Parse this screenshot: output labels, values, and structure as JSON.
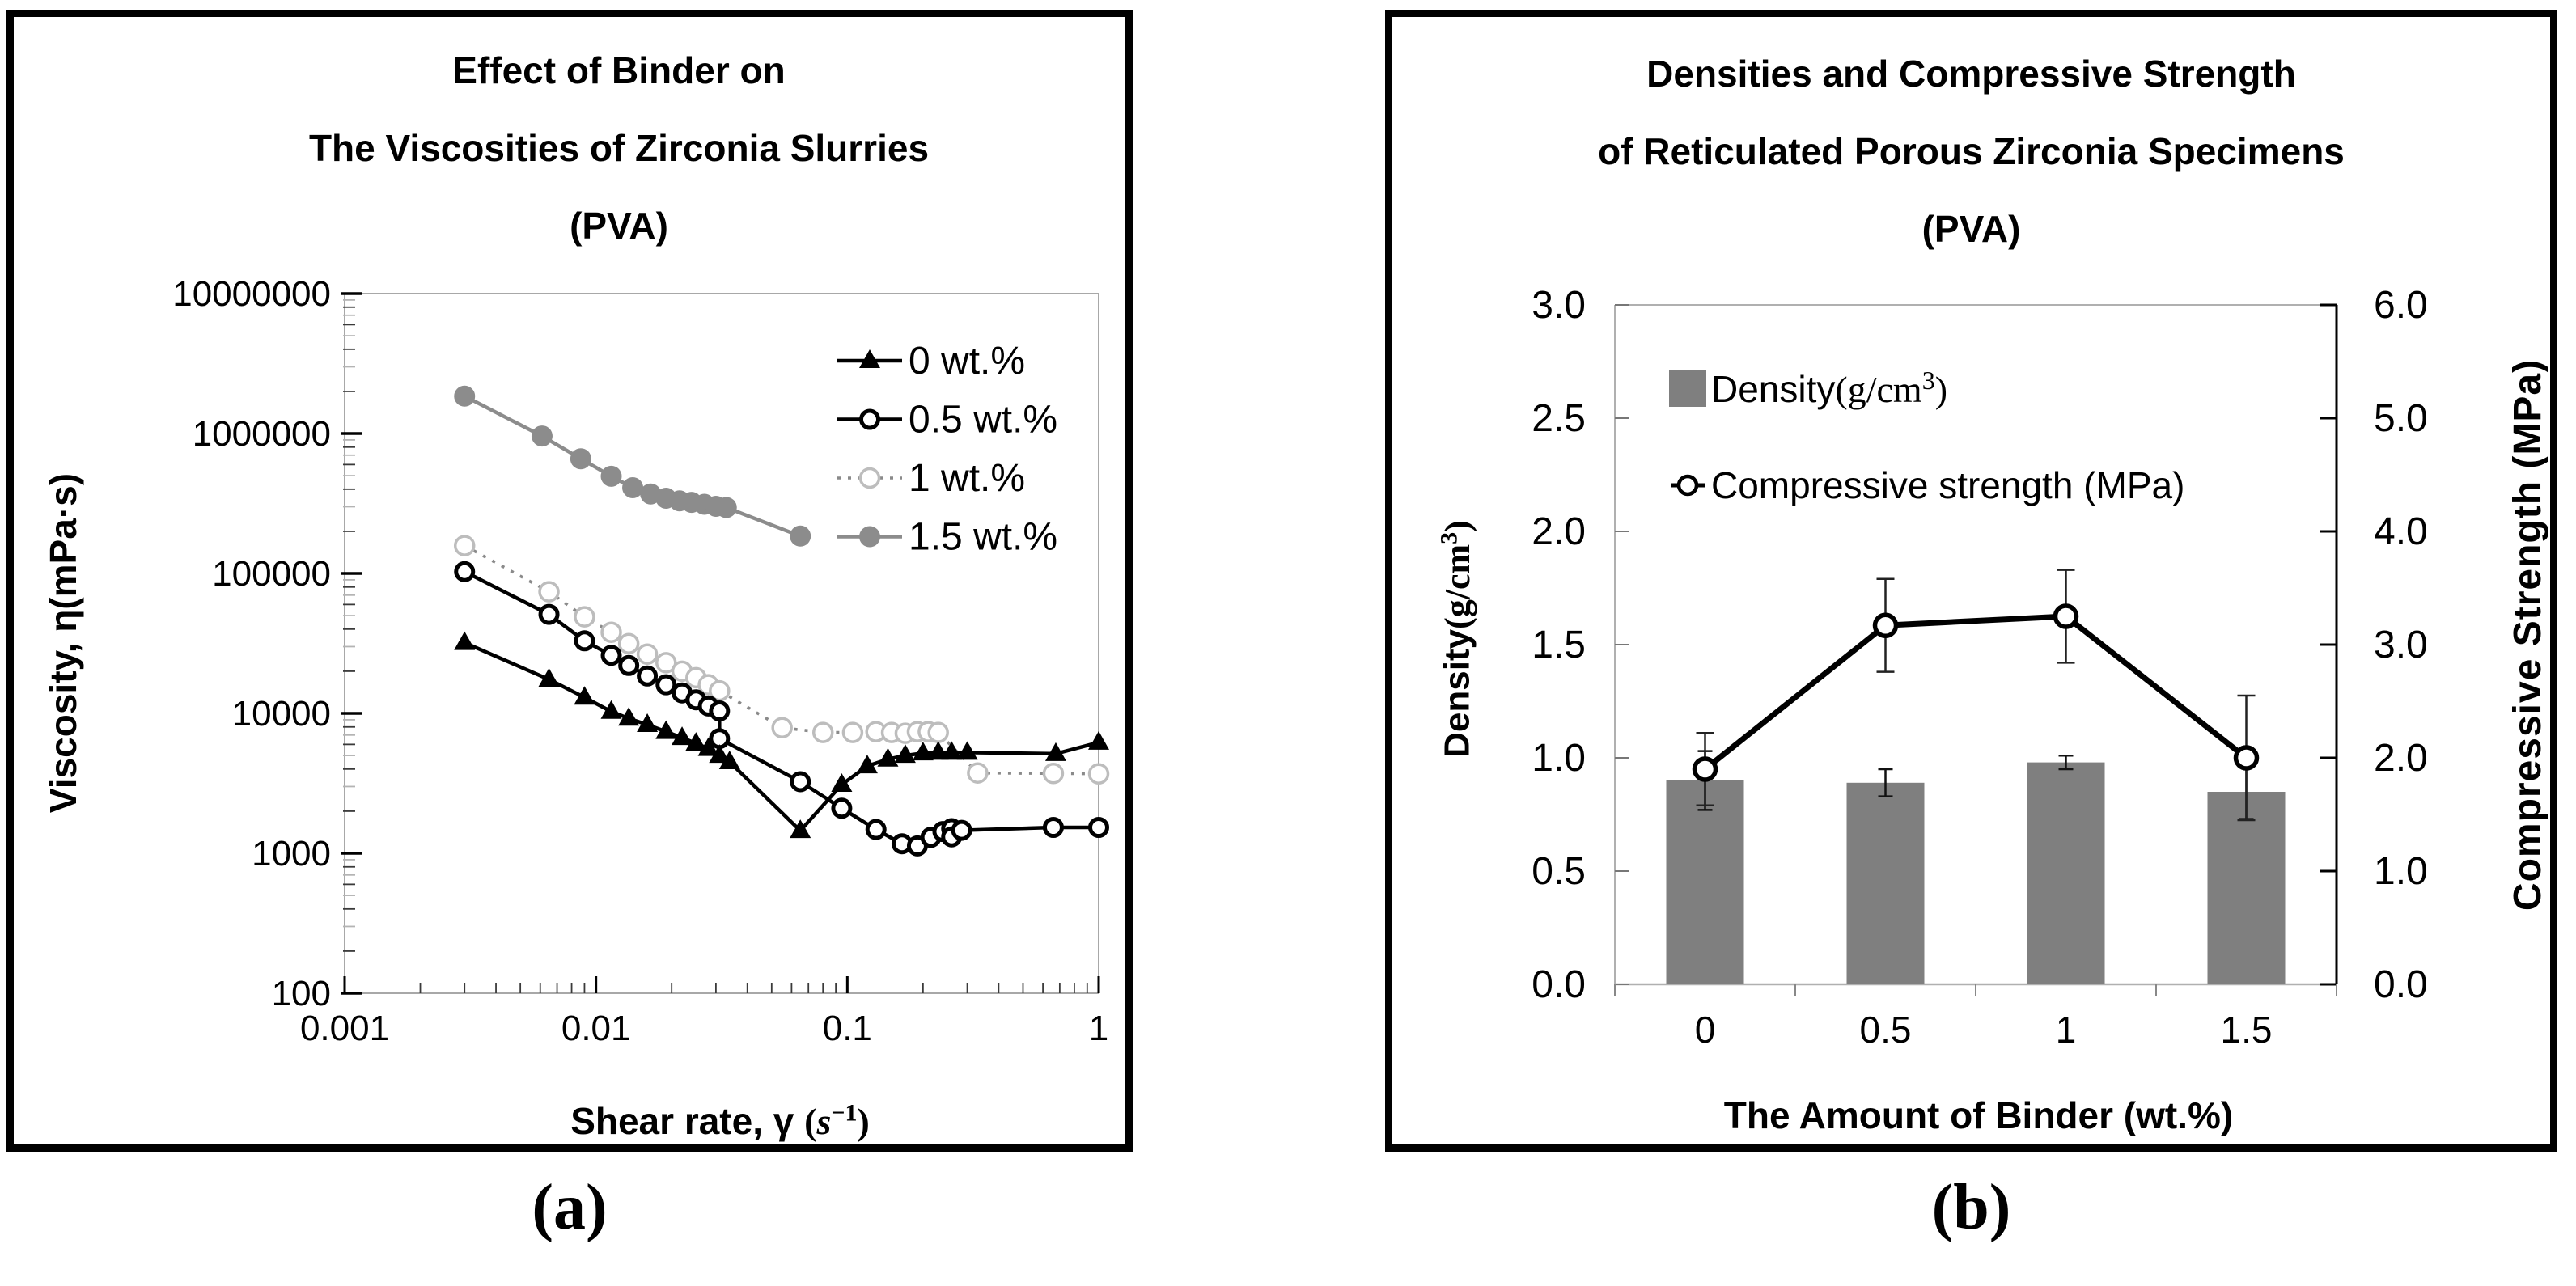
{
  "captions": {
    "a": "(a)",
    "b": "(b)"
  },
  "chart_data": [
    {
      "type": "line",
      "scale": "log-log",
      "title_lines": [
        "Effect of Binder on",
        "The Viscosities of Zirconia Slurries",
        "(PVA)"
      ],
      "ylabel": "Viscosity, η(mPa·s)",
      "xlabel_parts": {
        "main": "Shear rate, γ ",
        "open": "(",
        "s": "s",
        "sup": "−1",
        "close": ")"
      },
      "xlim": [
        0.001,
        1
      ],
      "ylim": [
        100,
        10000000
      ],
      "x_tick_labels": [
        "0.001",
        "0.01",
        "0.1",
        "1"
      ],
      "y_tick_labels": [
        "10000000",
        "1000000",
        "100000",
        "10000",
        "1000",
        "100"
      ],
      "grid": "off",
      "legend_position": "inside-top-right",
      "series": [
        {
          "name": "1.5 wt.%",
          "marker": "circle-filled",
          "line": "solid",
          "line_color": "#8c8c8c",
          "marker_color": "#8c8c8c",
          "points": [
            [
              0.003,
              1850000
            ],
            [
              0.0061,
              960000
            ],
            [
              0.0087,
              660000
            ],
            [
              0.0115,
              495000
            ],
            [
              0.014,
              410000
            ],
            [
              0.0165,
              370000
            ],
            [
              0.019,
              345000
            ],
            [
              0.0215,
              330000
            ],
            [
              0.024,
              322000
            ],
            [
              0.027,
              312000
            ],
            [
              0.03,
              302000
            ],
            [
              0.033,
              296000
            ],
            [
              0.065,
              185000
            ]
          ]
        },
        {
          "name": "1 wt.%",
          "marker": "circle-open-light",
          "line": "dotted",
          "line_color": "#8a8a8a",
          "marker_color": "#bdbdbd",
          "points": [
            [
              0.003,
              158000
            ],
            [
              0.0065,
              74000
            ],
            [
              0.009,
              49000
            ],
            [
              0.0115,
              38000
            ],
            [
              0.0135,
              31500
            ],
            [
              0.016,
              26500
            ],
            [
              0.019,
              23000
            ],
            [
              0.022,
              20000
            ],
            [
              0.025,
              18000
            ],
            [
              0.028,
              16000
            ],
            [
              0.031,
              14500
            ],
            [
              0.055,
              7900
            ],
            [
              0.08,
              7300
            ],
            [
              0.105,
              7300
            ],
            [
              0.13,
              7400
            ],
            [
              0.15,
              7300
            ],
            [
              0.17,
              7200
            ],
            [
              0.19,
              7400
            ],
            [
              0.21,
              7400
            ],
            [
              0.23,
              7300
            ],
            [
              0.33,
              3750
            ],
            [
              0.66,
              3720
            ],
            [
              1,
              3700
            ]
          ]
        },
        {
          "name": "0.5 wt.%",
          "marker": "circle-open",
          "line": "solid",
          "line_color": "#000000",
          "marker_color": "#000000",
          "points": [
            [
              0.003,
              103000
            ],
            [
              0.0065,
              51000
            ],
            [
              0.009,
              33000
            ],
            [
              0.0115,
              26000
            ],
            [
              0.0135,
              22000
            ],
            [
              0.016,
              18500
            ],
            [
              0.019,
              16000
            ],
            [
              0.022,
              14000
            ],
            [
              0.025,
              12500
            ],
            [
              0.028,
              11300
            ],
            [
              0.031,
              10400
            ],
            [
              0.031,
              6600
            ],
            [
              0.065,
              3250
            ],
            [
              0.095,
              2100
            ],
            [
              0.13,
              1480
            ],
            [
              0.165,
              1170
            ],
            [
              0.19,
              1130
            ],
            [
              0.215,
              1300
            ],
            [
              0.24,
              1430
            ],
            [
              0.26,
              1500
            ],
            [
              0.26,
              1310
            ],
            [
              0.285,
              1460
            ],
            [
              0.66,
              1530
            ],
            [
              1,
              1530
            ]
          ]
        },
        {
          "name": "0 wt.%",
          "marker": "triangle-filled",
          "line": "solid",
          "line_color": "#000000",
          "marker_color": "#000000",
          "points": [
            [
              0.003,
              32000
            ],
            [
              0.0065,
              17500
            ],
            [
              0.009,
              13000
            ],
            [
              0.0115,
              10300
            ],
            [
              0.0135,
              9200
            ],
            [
              0.016,
              8300
            ],
            [
              0.019,
              7400
            ],
            [
              0.022,
              6700
            ],
            [
              0.025,
              6100
            ],
            [
              0.028,
              5600
            ],
            [
              0.031,
              5000
            ],
            [
              0.034,
              4500
            ],
            [
              0.065,
              1450
            ],
            [
              0.095,
              3100
            ],
            [
              0.12,
              4200
            ],
            [
              0.145,
              4700
            ],
            [
              0.17,
              5000
            ],
            [
              0.2,
              5200
            ],
            [
              0.23,
              5250
            ],
            [
              0.26,
              5250
            ],
            [
              0.3,
              5250
            ],
            [
              0.675,
              5150
            ],
            [
              1,
              6200
            ]
          ]
        }
      ],
      "legend_order": [
        "0 wt.%",
        "0.5 wt.%",
        "1 wt.%",
        "1.5 wt.%"
      ]
    },
    {
      "type": "bar+line",
      "title_lines": [
        "Densities and Compressive Strength",
        "of Reticulated Porous Zirconia Specimens",
        "(PVA)"
      ],
      "categories": [
        "0",
        "0.5",
        "1",
        "1.5"
      ],
      "xlabel": "The Amount of Binder (wt.%)",
      "ylabel_left_parts": {
        "main": "Density",
        "open": "(g/cm",
        "sup": "3",
        "close": ")"
      },
      "ylabel_right": "Compressive Strength (MPa)",
      "ylim_left": [
        0,
        3.0
      ],
      "ylim_right": [
        0,
        6.0
      ],
      "y_tick_labels_left": [
        "3.0",
        "2.5",
        "2.0",
        "1.5",
        "1.0",
        "0.5",
        "0.0"
      ],
      "y_tick_labels_right": [
        "6.0",
        "5.0",
        "4.0",
        "3.0",
        "2.0",
        "1.0",
        "0.0"
      ],
      "grid": "off",
      "legend_position": "inside-top-left",
      "bar_series": {
        "name_parts": {
          "main": "Density",
          "open": "(g/cm",
          "sup": "3",
          "close": ")"
        },
        "color": "#7f7f7f",
        "values": [
          0.9,
          0.89,
          0.98,
          0.85
        ],
        "errors": [
          0.13,
          0.06,
          0.03,
          0.12
        ]
      },
      "line_series": {
        "name": "Compressive strength (MPa)",
        "color": "#000000",
        "values": [
          1.9,
          3.17,
          3.25,
          2.0
        ],
        "errors": [
          0.32,
          0.41,
          0.41,
          0.55
        ]
      }
    }
  ]
}
